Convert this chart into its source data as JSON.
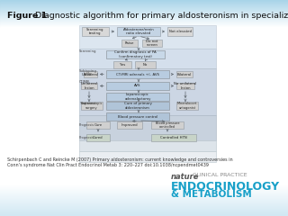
{
  "title_bold": "Figure 1",
  "title_regular": " Diagnostic algorithm for primary aldosteronism in specialized centers",
  "bg_top_color": "#a8d4e8",
  "bg_white_color": "#ffffff",
  "bg_bottom_color": "#b0d8ea",
  "citation_line1": "Schirpenbach C and Reincke M (2007) Primary aldosteronism: current knowledge and controversies in",
  "citation_line2": "Conn’s syndrome Nat Clin Pract Endocrinol Metab 3: 220–227 doi:10.1038/ncpendmet0439",
  "nature_italic": "nature",
  "nature_caps": " CLINICAL PRACTICE",
  "journal_line1": "ENDOCRINOLOGY",
  "journal_line2": "& METABOLISM",
  "journal_color": "#18a0c8",
  "nature_color": "#666666",
  "diagram_section_colors": {
    "screening_bg": "#e0e8f0",
    "confirm_bg": "#d8e4ee",
    "subtype_bg": "#ccd8e8",
    "treatment_bg": "#c8d4e4",
    "prognosis_bg": "#e8e8e8"
  },
  "box_light": "#e8e8e8",
  "box_mid": "#d0d8e0",
  "box_dark": "#b8c8d8",
  "box_edge": "#a0a8b0",
  "arrow_color": "#606870"
}
